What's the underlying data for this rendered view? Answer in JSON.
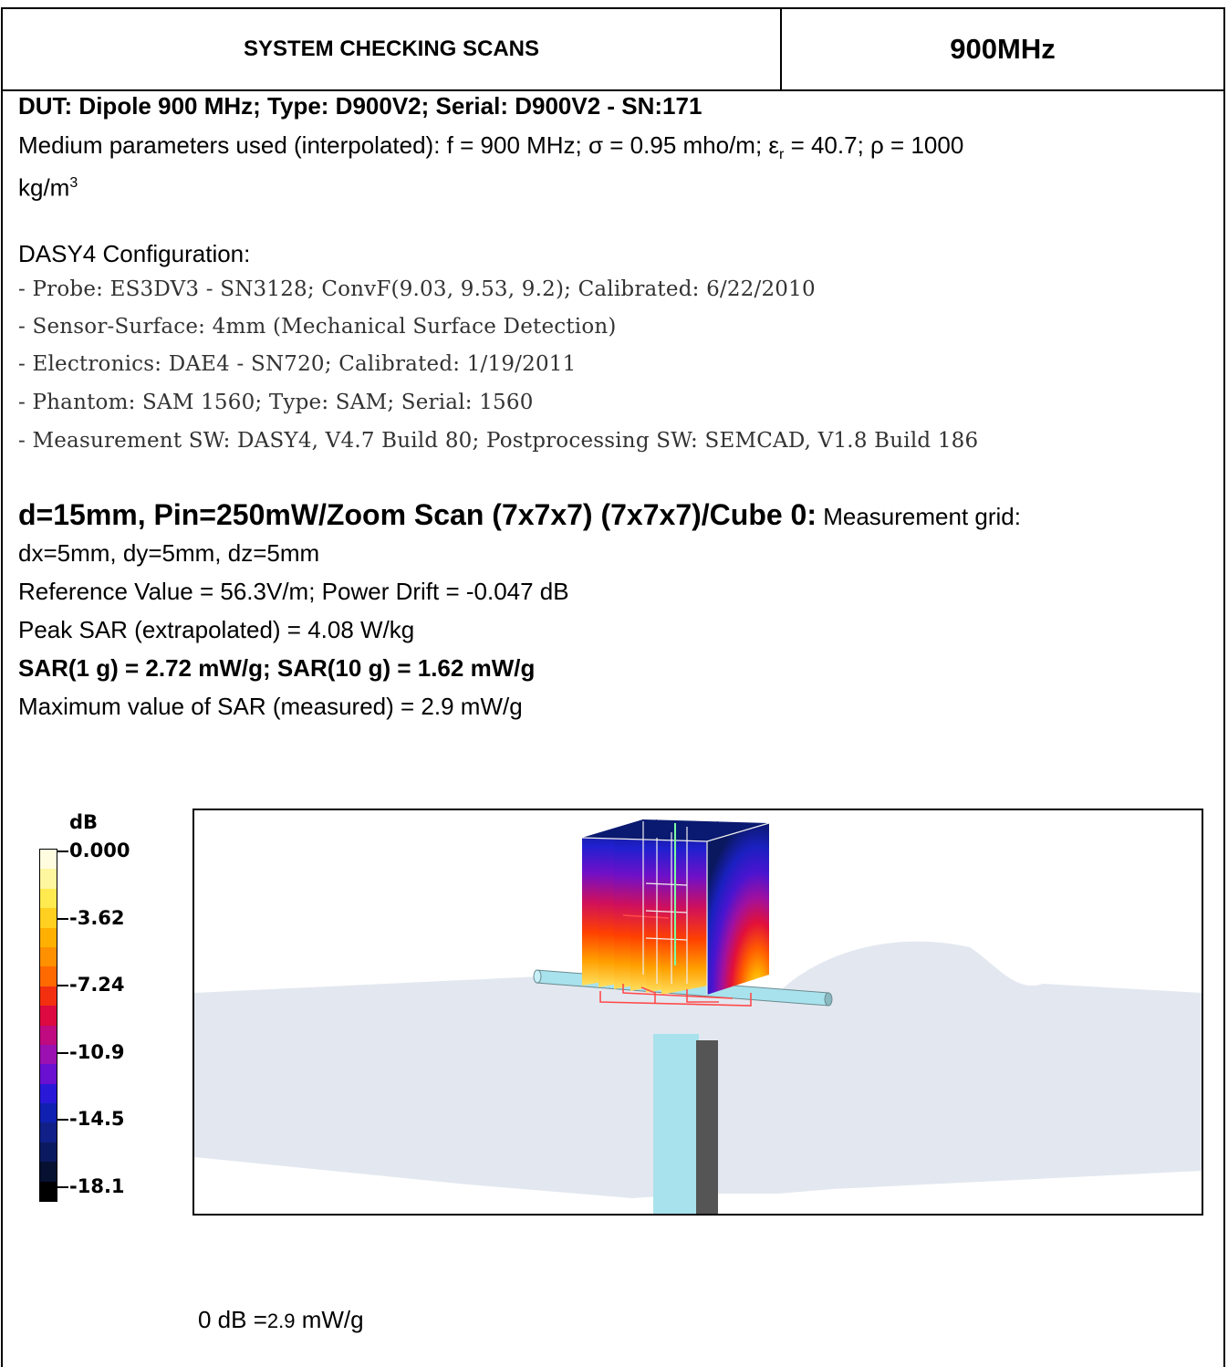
{
  "header": {
    "title": "SYSTEM CHECKING SCANS",
    "frequency": "900MHz"
  },
  "dut": {
    "line": "DUT: Dipole 900 MHz; Type: D900V2; Serial: D900V2 - SN:171"
  },
  "medium": {
    "prefix": "Medium parameters used (interpolated): f = 900 MHz; σ = 0.95 mho/m; ε",
    "sub": "r",
    "mid": " = 40.7; ρ = 1000",
    "unit": "kg/m",
    "sup": "3"
  },
  "config": {
    "title": "DASY4 Configuration:",
    "items": [
      "- Probe: ES3DV3 - SN3128; ConvF(9.03, 9.53, 9.2); Calibrated: 6/22/2010",
      "- Sensor-Surface: 4mm (Mechanical Surface Detection)",
      "- Electronics: DAE4 - SN720; Calibrated: 1/19/2011",
      "- Phantom: SAM 1560; Type: SAM; Serial: 1560",
      "- Measurement SW: DASY4, V4.7 Build 80; Postprocessing SW: SEMCAD, V1.8 Build 186"
    ]
  },
  "scan": {
    "title": "d=15mm, Pin=250mW/Zoom Scan (7x7x7) (7x7x7)/Cube 0:",
    "grid_label": " Measurement grid:",
    "grid": "dx=5mm, dy=5mm, dz=5mm",
    "reference": "Reference Value = 56.3V/m; Power Drift = -0.047 dB",
    "peak": "Peak SAR (extrapolated) = 4.08 W/kg",
    "sar": "SAR(1 g) = 2.72 mW/g; SAR(10 g) = 1.62 mW/g",
    "max": "Maximum value of SAR (measured) = 2.9 mW/g"
  },
  "colorbar": {
    "unit": "dB",
    "labels": [
      "0.000",
      "-3.62",
      "-7.24",
      "-10.9",
      "-14.5",
      "-18.1"
    ],
    "colors": [
      "#fffce0",
      "#fff6a0",
      "#ffea50",
      "#ffd020",
      "#ffb000",
      "#ff9000",
      "#ff6a00",
      "#f23010",
      "#dc0a40",
      "#bf0a80",
      "#9a10b0",
      "#6a10d0",
      "#2a18d8",
      "#1020b0",
      "#102088",
      "#0a1a60",
      "#061030",
      "#000000"
    ]
  },
  "reference_line": {
    "prefix": "0 dB =",
    "value": "2.9",
    "unit": " mW/g"
  },
  "colors": {
    "phantom": "#e3e8f0",
    "dipole": "#a8e2ec",
    "stand": "#555555",
    "grid": "#ff4040"
  }
}
